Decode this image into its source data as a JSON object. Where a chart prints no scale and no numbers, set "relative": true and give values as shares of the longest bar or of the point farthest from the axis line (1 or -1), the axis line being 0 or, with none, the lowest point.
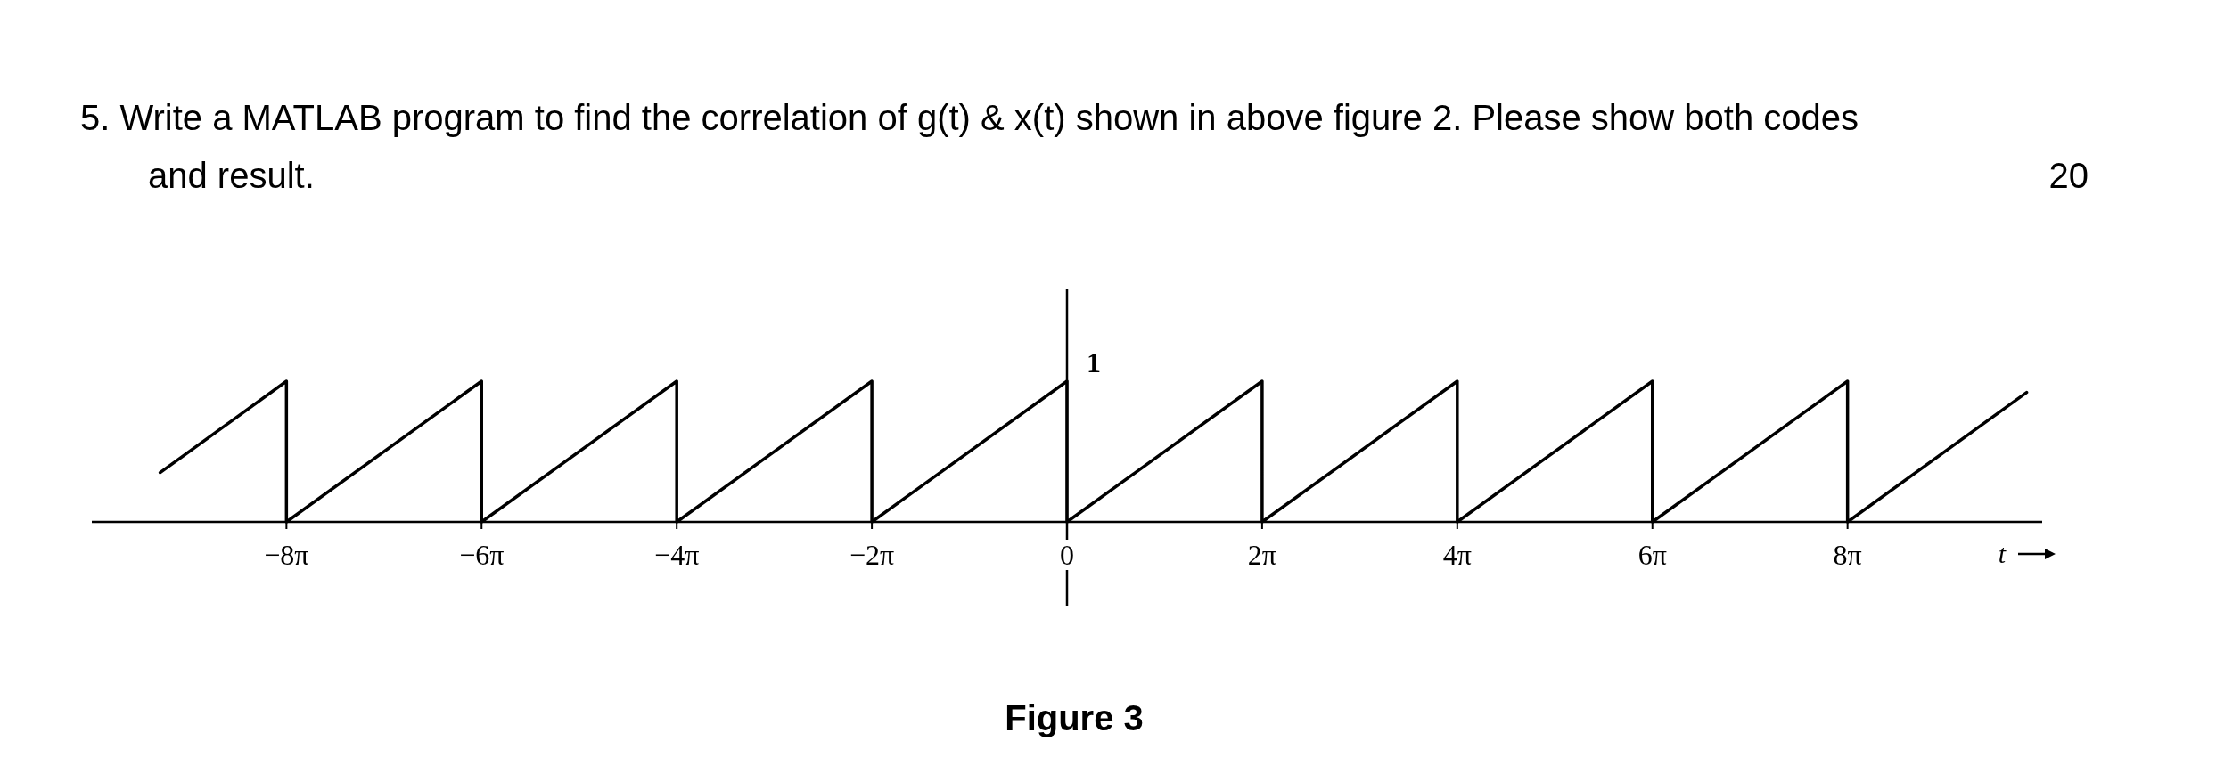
{
  "chart_data": {
    "type": "line",
    "title": "5.  Write a MATLAB program to find the correlation of g(t) & x(t) shown in above figure 2. Please show both codes and result.",
    "annotations": [
      "20",
      "Figure 3",
      {
        "text": "1",
        "x": 0,
        "y": 1
      }
    ],
    "xlabel": "t",
    "relative": true,
    "series": [
      {
        "color": "#000000",
        "x": [
          -29.2,
          -25.133,
          -25.133,
          -18.85,
          -18.85,
          -12.566,
          -12.566,
          -6.283,
          -6.283,
          0,
          0,
          6.283,
          6.283,
          12.566,
          12.566,
          18.85,
          18.85,
          25.133,
          25.133,
          30.9
        ],
        "values": [
          0.35,
          1,
          0,
          1,
          0,
          1,
          0,
          1,
          0,
          1,
          0,
          1,
          0,
          1,
          0,
          1,
          0,
          1,
          0,
          0.92
        ]
      }
    ],
    "xlim": [
      -31.4,
      31.4
    ],
    "xticks": [
      {
        "value": -25.133,
        "label": "−8π"
      },
      {
        "value": -18.85,
        "label": "−6π"
      },
      {
        "value": -12.566,
        "label": "−4π"
      },
      {
        "value": -6.283,
        "label": "−2π"
      },
      0,
      {
        "value": 6.283,
        "label": "2π"
      },
      {
        "value": 12.566,
        "label": "4π"
      },
      {
        "value": 18.85,
        "label": "6π"
      },
      {
        "value": 25.133,
        "label": "8π"
      }
    ],
    "marker": "none",
    "line_style": "solid"
  }
}
